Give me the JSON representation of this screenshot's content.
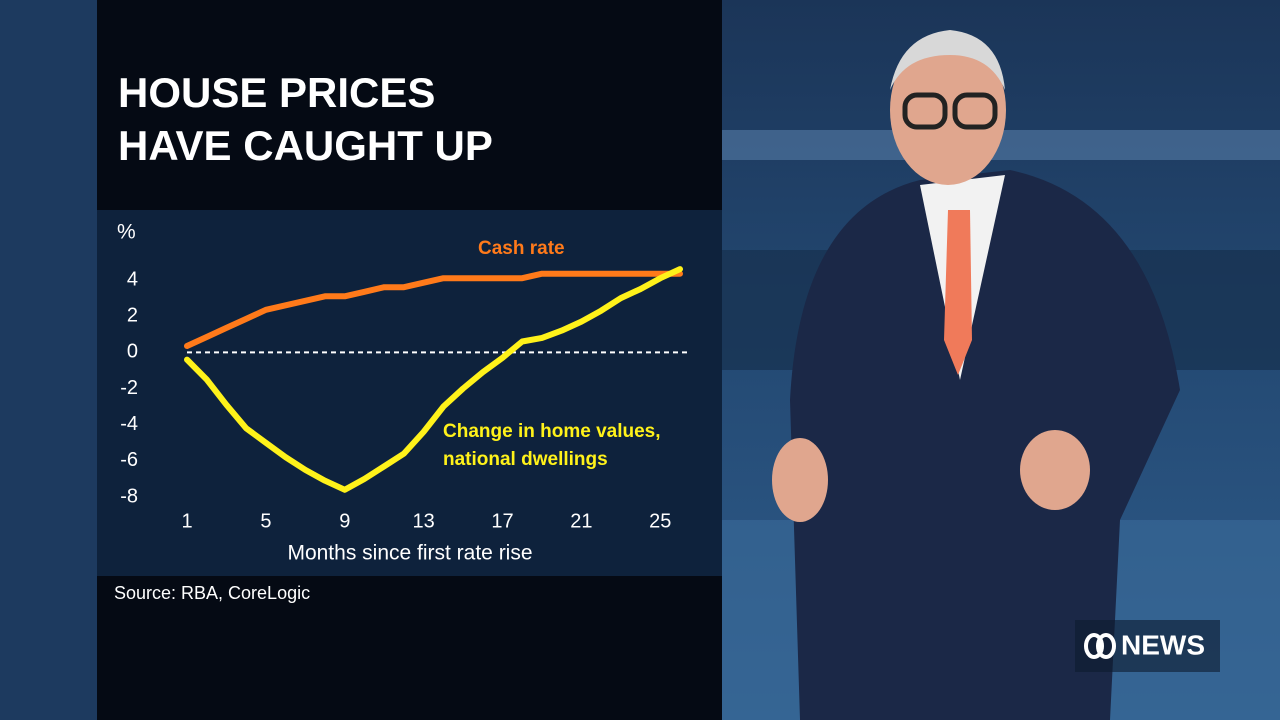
{
  "chart_data": {
    "type": "line",
    "title": [
      "HOUSE PRICES",
      "HAVE CAUGHT UP"
    ],
    "y_label": "%",
    "x_label": "Months since first rate rise",
    "source": "Source: RBA, CoreLogic",
    "x": [
      1,
      2,
      3,
      4,
      5,
      6,
      7,
      8,
      9,
      10,
      11,
      12,
      13,
      14,
      15,
      16,
      17,
      18,
      19,
      20,
      21,
      22,
      23,
      24,
      25,
      26
    ],
    "xlim": [
      1,
      26
    ],
    "xticks": [
      1,
      5,
      9,
      13,
      17,
      21,
      25
    ],
    "ylim": [
      -8,
      4
    ],
    "yticks": [
      4,
      2,
      0,
      -2,
      -4,
      -6,
      -8
    ],
    "grid": false,
    "zero_line": true,
    "series": [
      {
        "name": "Cash rate",
        "color": "#ff7a1a",
        "values": [
          0.35,
          0.85,
          1.35,
          1.85,
          2.35,
          2.6,
          2.85,
          3.1,
          3.1,
          3.35,
          3.6,
          3.6,
          3.85,
          4.1,
          4.1,
          4.1,
          4.1,
          4.1,
          4.35,
          4.35,
          4.35,
          4.35,
          4.35,
          4.35,
          4.35,
          4.35
        ]
      },
      {
        "name": "Change in home values, national dwellings",
        "color": "#fff21a",
        "values": [
          -0.4,
          -1.5,
          -2.9,
          -4.2,
          -5.0,
          -5.8,
          -6.5,
          -7.1,
          -7.6,
          -7.0,
          -6.3,
          -5.6,
          -4.4,
          -3.0,
          -2.0,
          -1.1,
          -0.3,
          0.6,
          0.8,
          1.2,
          1.7,
          2.3,
          3.0,
          3.5,
          4.1,
          4.6
        ]
      }
    ]
  },
  "logo": "NEWS"
}
